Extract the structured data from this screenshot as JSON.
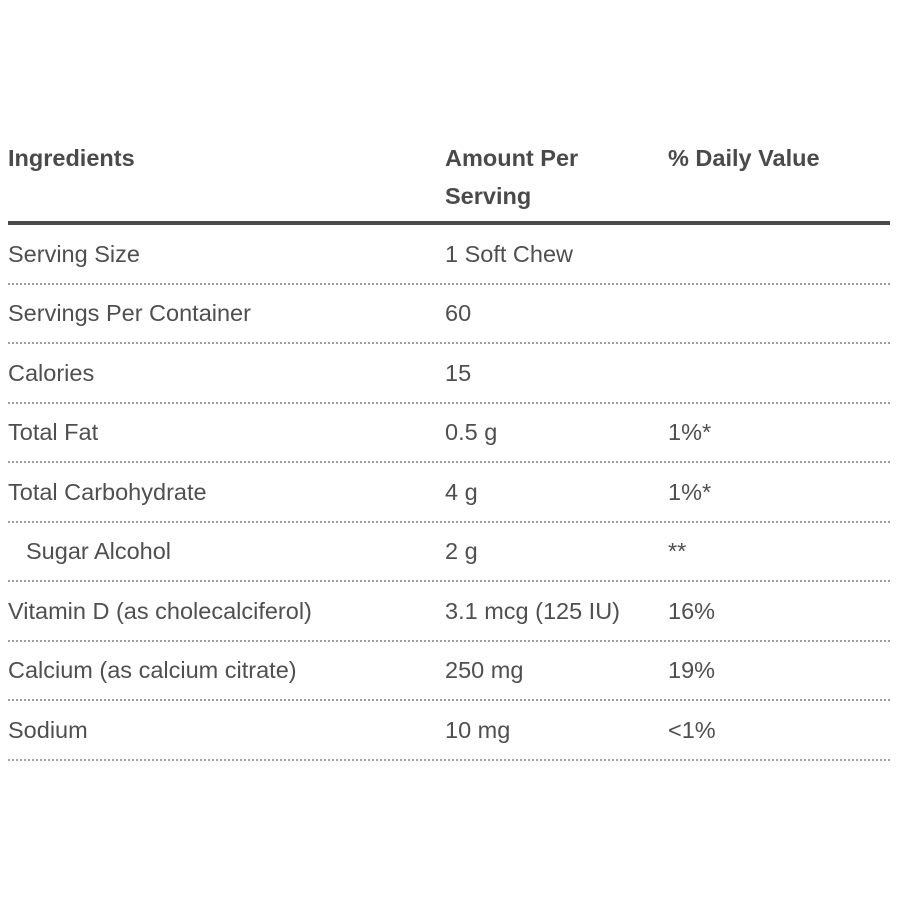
{
  "page": {
    "background_color": "#ffffff",
    "text_color": "#4f4f4f",
    "header_rule_color": "#4a4a4a",
    "row_divider_color": "#9e9e9e"
  },
  "table": {
    "headers": {
      "ingredients": "Ingredients",
      "amount_per_serving": "Amount Per Serving",
      "daily_value": "% Daily Value"
    },
    "rows": [
      {
        "label": "Serving Size",
        "amount": "1 Soft Chew",
        "daily_value": ""
      },
      {
        "label": "Servings Per Container",
        "amount": "60",
        "daily_value": ""
      },
      {
        "label": "Calories",
        "amount": "15",
        "daily_value": ""
      },
      {
        "label": "Total Fat",
        "amount": "0.5 g",
        "daily_value": "1%*"
      },
      {
        "label": "Total Carbohydrate",
        "amount": "4 g",
        "daily_value": "1%*"
      },
      {
        "label": "Sugar Alcohol",
        "amount": "2 g",
        "daily_value": "**"
      },
      {
        "label": "Vitamin D (as cholecalciferol)",
        "amount": "3.1 mcg (125 IU)",
        "daily_value": "16%"
      },
      {
        "label": "Calcium (as calcium citrate)",
        "amount": "250 mg",
        "daily_value": "19%"
      },
      {
        "label": "Sodium",
        "amount": "10 mg",
        "daily_value": "<1%"
      }
    ]
  }
}
